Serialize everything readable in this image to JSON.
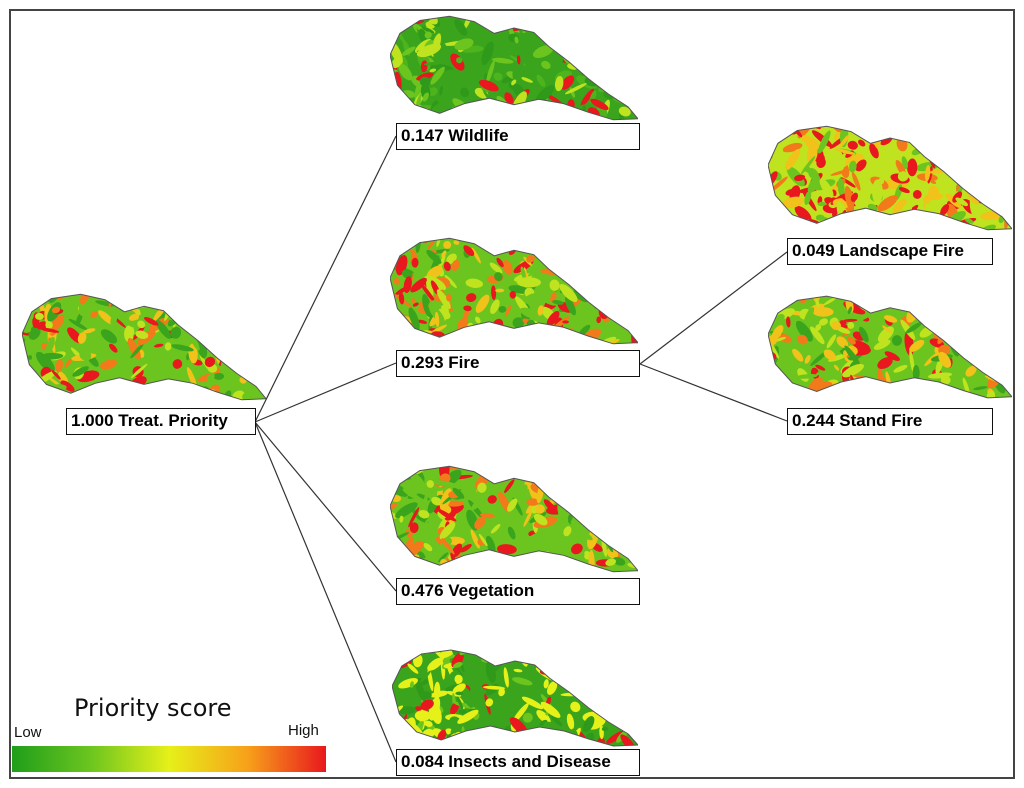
{
  "diagram": {
    "root": {
      "label": "1.000 Treat. Priority"
    },
    "children": [
      {
        "label": "0.147 Wildlife"
      },
      {
        "label": "0.293 Fire"
      },
      {
        "label": "0.476 Vegetation"
      },
      {
        "label": "0.084 Insects and Disease"
      }
    ],
    "fire_children": [
      {
        "label": "0.049 Landscape Fire"
      },
      {
        "label": "0.244 Stand Fire"
      }
    ]
  },
  "legend": {
    "title": "Priority score",
    "low_label": "Low",
    "high_label": "High",
    "colors": [
      "#1f9e1a",
      "#6cc51f",
      "#e6f019",
      "#f7a11a",
      "#e8181e"
    ]
  }
}
